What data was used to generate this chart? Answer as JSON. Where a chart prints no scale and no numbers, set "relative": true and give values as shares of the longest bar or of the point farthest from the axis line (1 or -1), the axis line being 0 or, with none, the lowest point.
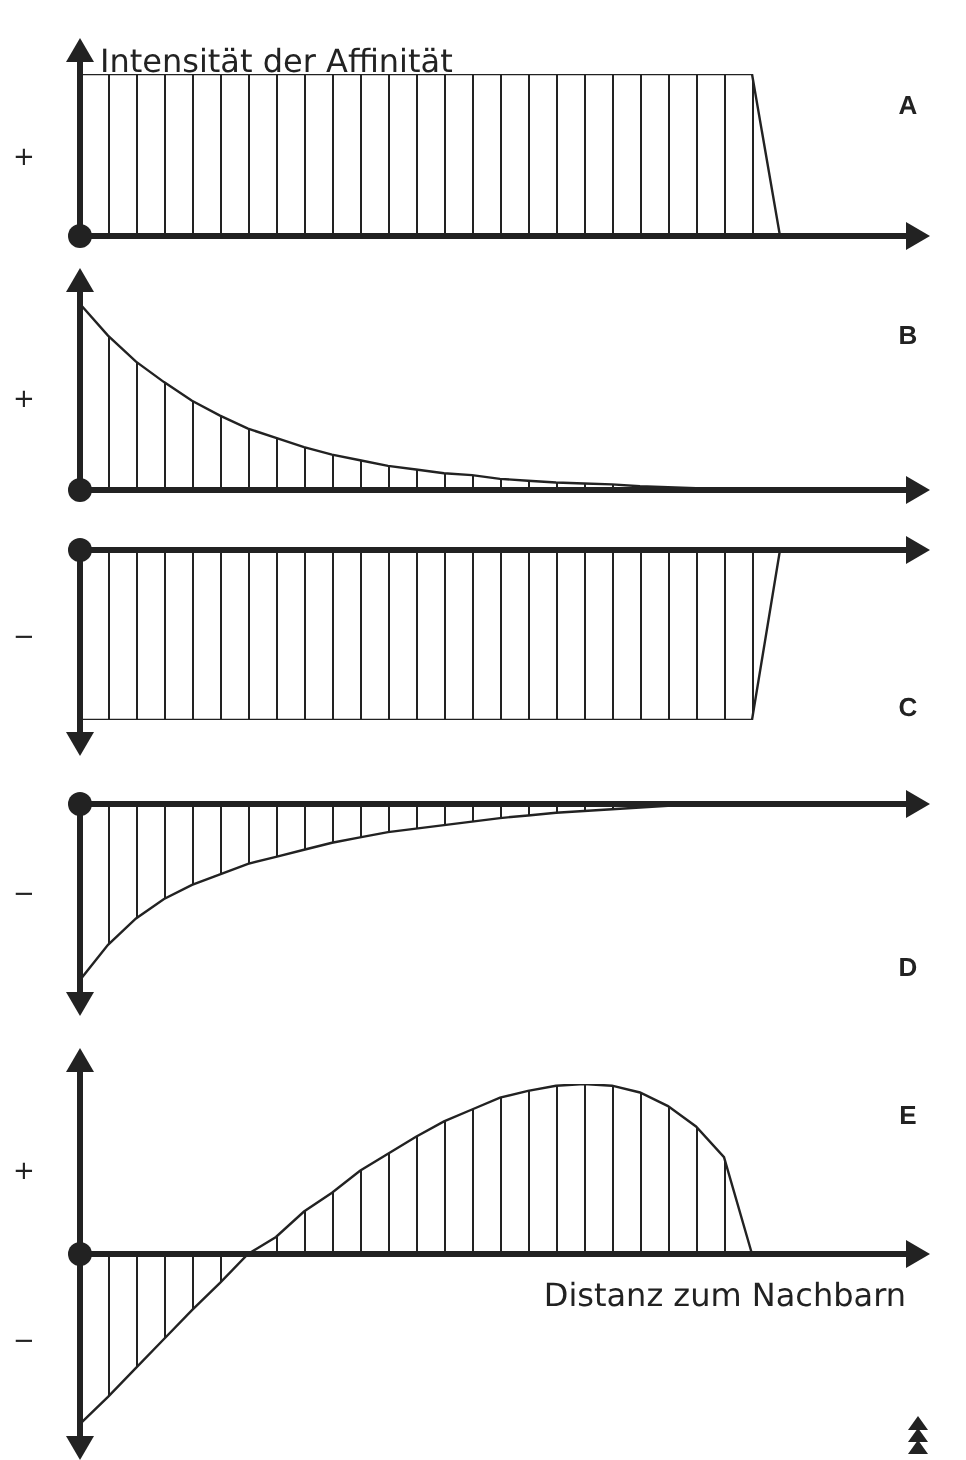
{
  "chart_data": [
    {
      "type": "area",
      "title": "A",
      "ylabel": "Intensität der Affinität",
      "relative": true,
      "color": "#222222",
      "annotations": [
        "+"
      ],
      "categories": [
        null,
        null,
        null,
        null,
        null,
        null,
        null,
        null,
        null,
        null,
        null,
        null,
        null,
        null,
        null,
        null,
        null,
        null,
        null,
        null,
        null,
        null,
        null,
        null,
        null,
        null,
        null,
        null,
        null,
        null,
        null
      ],
      "values": [
        1,
        1,
        1,
        1,
        1,
        1,
        1,
        1,
        1,
        1,
        1,
        1,
        1,
        1,
        1,
        1,
        1,
        1,
        1,
        1,
        1,
        1,
        1,
        1,
        1,
        0,
        0,
        0,
        0,
        0,
        0
      ]
    },
    {
      "type": "area",
      "title": "B",
      "relative": true,
      "color": "#222222",
      "annotations": [
        "+"
      ],
      "categories": [
        null,
        null,
        null,
        null,
        null,
        null,
        null,
        null,
        null,
        null,
        null,
        null,
        null,
        null,
        null,
        null,
        null,
        null,
        null,
        null,
        null,
        null,
        null,
        null,
        null,
        null,
        null,
        null,
        null,
        null,
        null
      ],
      "values": [
        1,
        0.83,
        0.69,
        0.58,
        0.48,
        0.4,
        0.33,
        0.28,
        0.23,
        0.19,
        0.16,
        0.13,
        0.11,
        0.09,
        0.08,
        0.06,
        0.05,
        0.04,
        0.035,
        0.03,
        0.02,
        0.015,
        0.01,
        0.005,
        0,
        0,
        0,
        0,
        0,
        0,
        0
      ]
    },
    {
      "type": "area",
      "title": "C",
      "relative": true,
      "color": "#222222",
      "annotations": [
        "−"
      ],
      "categories": [
        null,
        null,
        null,
        null,
        null,
        null,
        null,
        null,
        null,
        null,
        null,
        null,
        null,
        null,
        null,
        null,
        null,
        null,
        null,
        null,
        null,
        null,
        null,
        null,
        null,
        null,
        null,
        null,
        null,
        null,
        null
      ],
      "values": [
        -1,
        -1,
        -1,
        -1,
        -1,
        -1,
        -1,
        -1,
        -1,
        -1,
        -1,
        -1,
        -1,
        -1,
        -1,
        -1,
        -1,
        -1,
        -1,
        -1,
        -1,
        -1,
        -1,
        -1,
        -1,
        0,
        0,
        0,
        0,
        0,
        0
      ]
    },
    {
      "type": "area",
      "title": "D",
      "relative": true,
      "color": "#222222",
      "annotations": [
        "−"
      ],
      "categories": [
        null,
        null,
        null,
        null,
        null,
        null,
        null,
        null,
        null,
        null,
        null,
        null,
        null,
        null,
        null,
        null,
        null,
        null,
        null,
        null,
        null,
        null,
        null,
        null,
        null,
        null,
        null,
        null,
        null,
        null,
        null
      ],
      "values": [
        -1,
        -0.8,
        -0.65,
        -0.54,
        -0.46,
        -0.4,
        -0.34,
        -0.3,
        -0.26,
        -0.22,
        -0.19,
        -0.16,
        -0.14,
        -0.12,
        -0.1,
        -0.08,
        -0.065,
        -0.05,
        -0.04,
        -0.03,
        -0.02,
        -0.01,
        0,
        null,
        null,
        null,
        null,
        null,
        null,
        null,
        null
      ]
    },
    {
      "type": "area",
      "title": "E",
      "xlabel": "Distanz zum Nachbarn",
      "relative": true,
      "color": "#222222",
      "annotations": [
        "+",
        "−"
      ],
      "categories": [
        null,
        null,
        null,
        null,
        null,
        null,
        null,
        null,
        null,
        null,
        null,
        null,
        null,
        null,
        null,
        null,
        null,
        null,
        null,
        null,
        null,
        null,
        null,
        null,
        null,
        null,
        null,
        null,
        null,
        null,
        null
      ],
      "values": [
        -1,
        -0.84,
        -0.67,
        -0.5,
        -0.33,
        -0.17,
        0,
        0.1,
        0.25,
        0.36,
        0.49,
        0.59,
        0.69,
        0.78,
        0.85,
        0.92,
        0.96,
        0.99,
        1,
        0.99,
        0.95,
        0.87,
        0.75,
        0.57,
        0,
        null,
        null,
        null,
        null,
        null,
        null
      ]
    }
  ]
}
